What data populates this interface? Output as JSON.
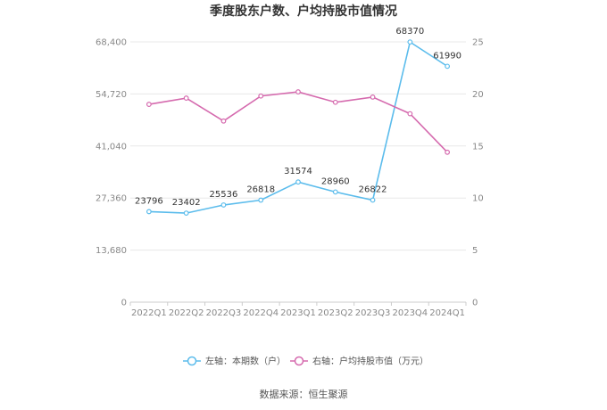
{
  "chart_data": {
    "type": "line",
    "title": "季度股东户数、户均持股市值情况",
    "categories": [
      "2022Q1",
      "2022Q2",
      "2022Q3",
      "2022Q4",
      "2023Q1",
      "2023Q2",
      "2023Q3",
      "2023Q4",
      "2024Q1"
    ],
    "series": [
      {
        "name": "左轴：本期数（户）",
        "axis": "left",
        "color": "#5bbcec",
        "values": [
          23796,
          23402,
          25536,
          26818,
          31574,
          28960,
          26822,
          68370,
          61990
        ],
        "labels": [
          "23796",
          "23402",
          "25536",
          "26818",
          "31574",
          "28960",
          "26822",
          "68370",
          "61990"
        ]
      },
      {
        "name": "右轴：户均持股市值（万元）",
        "axis": "right",
        "color": "#d56aae",
        "values": [
          19.0,
          19.6,
          17.4,
          19.8,
          20.2,
          19.2,
          19.7,
          18.1,
          14.4
        ]
      }
    ],
    "left_axis": {
      "ylim": [
        0,
        68400
      ],
      "ticks": [
        "0",
        "13,680",
        "27,360",
        "41,040",
        "54,720",
        "68,400"
      ]
    },
    "right_axis": {
      "ylim": [
        0,
        25
      ],
      "ticks": [
        "0",
        "5",
        "10",
        "15",
        "20",
        "25"
      ]
    },
    "grid": true,
    "legend_position": "bottom",
    "source": "数据来源：恒生聚源"
  }
}
